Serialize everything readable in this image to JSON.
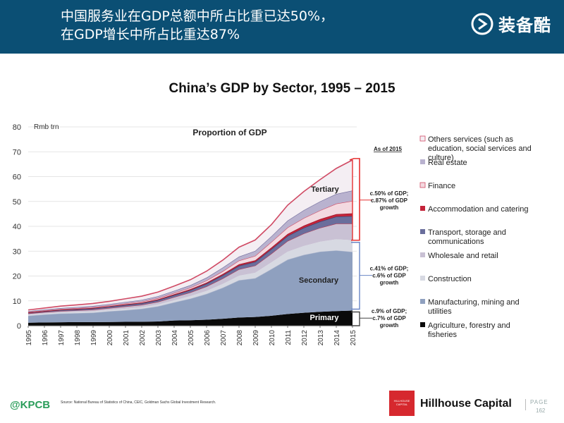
{
  "header": {
    "title_line1": "中国服务业在GDP总额中所占比重已达50%，",
    "title_line2": "在GDP增长中所占比重达87%",
    "brand": "装备酷"
  },
  "footer": {
    "kpcb": "@KPCB",
    "source": "Source: National Bureau of Statistics of China, CEIC, Goldman Sachs Global Investment Research.",
    "hillhouse_logo_text": "HILLHOUSE CAPITAL",
    "hillhouse_name": "Hillhouse Capital",
    "page_label": "PAGE",
    "page_number": "162"
  },
  "colors": {
    "header_bg": "#0b4f74",
    "agriculture": "#0a0a0a",
    "manufacturing": "#8fa0bf",
    "construction": "#d7d9e2",
    "wholesale": "#c9c1d4",
    "transport": "#6a6e9c",
    "accommodation": "#c4243a",
    "finance": "#f3d9e0",
    "real_estate": "#b9b2cf",
    "others": "#f4eef3",
    "bracket": "#e53030"
  },
  "chart_data": {
    "type": "area",
    "stacked": true,
    "title": "China’s GDP by Sector, 1995 – 2015",
    "ylabel": "Rmb trn",
    "ylim": [
      0,
      80
    ],
    "yticks": [
      0,
      10,
      20,
      30,
      40,
      50,
      60,
      70,
      80
    ],
    "x": [
      "1995",
      "1996",
      "1997",
      "1998",
      "1999",
      "2000",
      "2001",
      "2002",
      "2003",
      "2004",
      "2005",
      "2006",
      "2007",
      "2008",
      "2009",
      "2010",
      "2011",
      "2012",
      "2013",
      "2014",
      "2015"
    ],
    "inner_title": "Proportion of GDP",
    "inner_labels": {
      "tertiary": "Tertiary",
      "secondary": "Secondary",
      "primary": "Primary"
    },
    "as_of": "As of 2015",
    "annotations": [
      {
        "group": "tertiary",
        "text": "c.50% of GDP; c.87% of GDP growth"
      },
      {
        "group": "secondary",
        "text": "c.41% of GDP; c.6% of GDP growth"
      },
      {
        "group": "primary",
        "text": "c.9% of GDP; c.7% of GDP growth"
      }
    ],
    "series": [
      {
        "name": "Agriculture, forestry and fisheries",
        "values": [
          1.2,
          1.3,
          1.4,
          1.45,
          1.45,
          1.5,
          1.55,
          1.6,
          1.7,
          2.1,
          2.2,
          2.4,
          2.8,
          3.3,
          3.5,
          4.0,
          4.7,
          5.2,
          5.6,
          5.9,
          6.1
        ]
      },
      {
        "name": "Manufacturing, mining and utilities",
        "values": [
          2.8,
          3.2,
          3.5,
          3.6,
          3.8,
          4.3,
          4.7,
          5.2,
          6.1,
          7.3,
          8.7,
          10.4,
          12.5,
          15.0,
          15.6,
          18.8,
          21.9,
          23.3,
          24.2,
          24.4,
          23.6
        ]
      },
      {
        "name": "Construction",
        "values": [
          0.4,
          0.4,
          0.4,
          0.5,
          0.5,
          0.5,
          0.6,
          0.6,
          0.7,
          0.8,
          1.0,
          1.2,
          1.5,
          1.8,
          2.2,
          2.7,
          3.2,
          3.6,
          4.0,
          4.5,
          4.7
        ]
      },
      {
        "name": "Wholesale and retail",
        "values": [
          0.5,
          0.55,
          0.6,
          0.6,
          0.7,
          0.8,
          0.9,
          1.0,
          1.1,
          1.3,
          1.5,
          1.8,
          2.2,
          2.6,
          2.9,
          3.5,
          4.3,
          5.0,
          5.6,
          6.3,
          6.7
        ]
      },
      {
        "name": "Transport, storage and communications",
        "values": [
          0.3,
          0.35,
          0.4,
          0.45,
          0.5,
          0.55,
          0.6,
          0.65,
          0.7,
          0.8,
          0.9,
          1.1,
          1.3,
          1.4,
          1.5,
          1.8,
          2.0,
          2.3,
          2.5,
          2.8,
          3.0
        ]
      },
      {
        "name": "Accommodation and catering",
        "values": [
          0.15,
          0.15,
          0.15,
          0.2,
          0.2,
          0.2,
          0.25,
          0.25,
          0.3,
          0.35,
          0.4,
          0.45,
          0.5,
          0.6,
          0.6,
          0.7,
          0.8,
          0.9,
          1.0,
          1.0,
          1.1
        ]
      },
      {
        "name": "Finance",
        "values": [
          0.2,
          0.2,
          0.25,
          0.25,
          0.3,
          0.3,
          0.35,
          0.4,
          0.45,
          0.5,
          0.6,
          0.8,
          1.1,
          1.5,
          1.8,
          2.2,
          2.6,
          3.0,
          3.5,
          4.2,
          5.0
        ]
      },
      {
        "name": "Real estate",
        "values": [
          0.3,
          0.35,
          0.4,
          0.45,
          0.5,
          0.55,
          0.6,
          0.7,
          0.8,
          0.9,
          1.0,
          1.2,
          1.5,
          1.6,
          2.0,
          2.3,
          2.8,
          3.2,
          3.6,
          3.9,
          4.2
        ]
      },
      {
        "name": "Others services (such as education, social services and culture)",
        "values": [
          0.5,
          0.6,
          0.8,
          0.9,
          1.0,
          1.1,
          1.3,
          1.5,
          1.7,
          1.9,
          2.2,
          2.6,
          3.0,
          3.8,
          4.4,
          4.7,
          6.2,
          7.5,
          8.8,
          10.3,
          12.3
        ]
      }
    ]
  }
}
